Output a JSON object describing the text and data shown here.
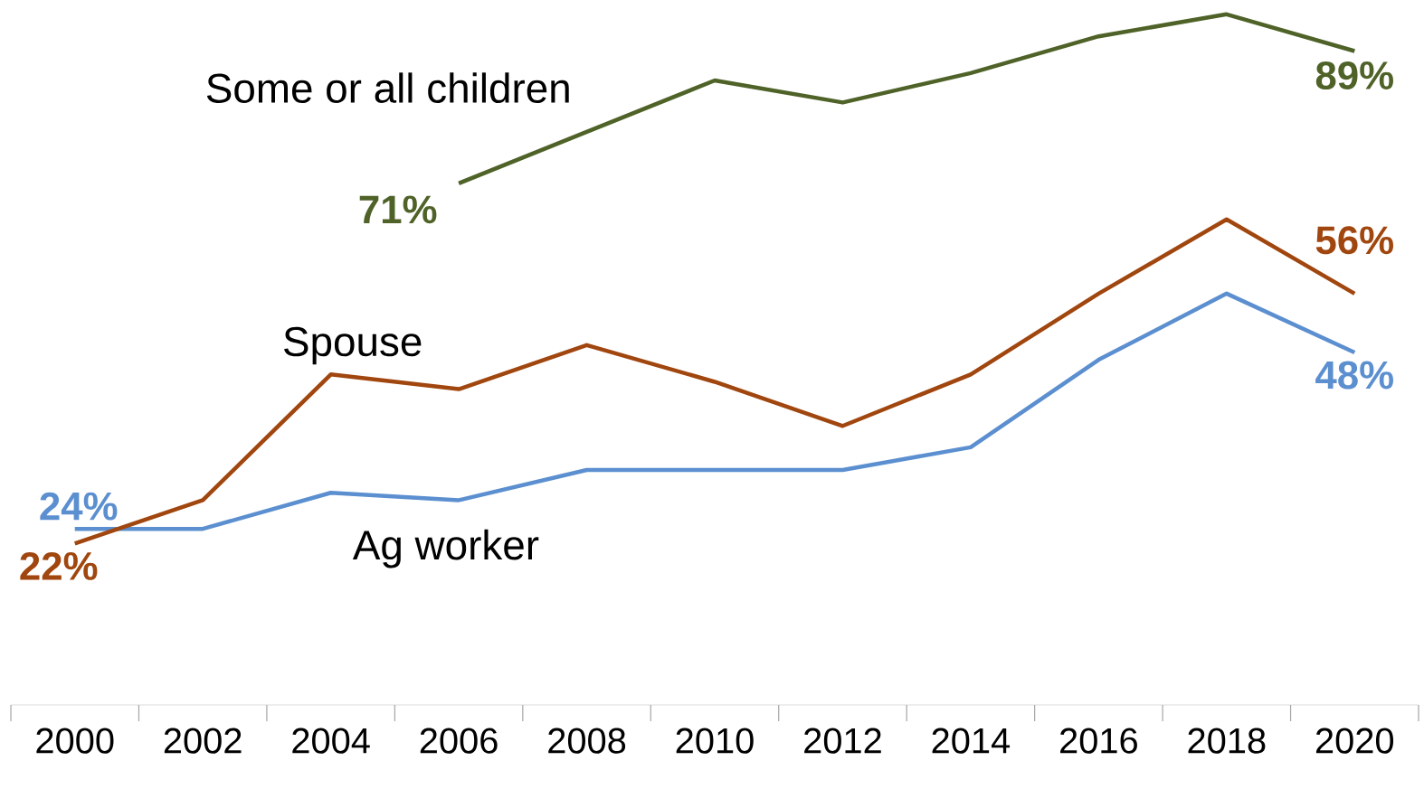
{
  "chart_data": {
    "type": "line",
    "categories": [
      "2000",
      "2002",
      "2004",
      "2006",
      "2008",
      "2010",
      "2012",
      "2014",
      "2016",
      "2018",
      "2020"
    ],
    "series": [
      {
        "name": "Ag worker",
        "color": "#5b8fd0",
        "values": [
          24,
          24,
          28.9,
          27.9,
          32,
          32,
          32,
          35.1,
          47,
          56,
          48
        ],
        "value_labels": [
          "24%",
          null,
          null,
          null,
          null,
          null,
          null,
          null,
          null,
          null,
          "48%"
        ]
      },
      {
        "name": "Spouse",
        "color": "#a0460e",
        "values": [
          22,
          27.9,
          45,
          43,
          49,
          44,
          38,
          45,
          56,
          66.1,
          56
        ],
        "value_labels": [
          "22%",
          null,
          null,
          null,
          null,
          null,
          null,
          null,
          null,
          null,
          "56%"
        ]
      },
      {
        "name": "Some or all children",
        "color": "#4f6228",
        "values": [
          null,
          null,
          null,
          71,
          78,
          85,
          82,
          86,
          91,
          94,
          89
        ],
        "value_labels": [
          null,
          null,
          null,
          "71%",
          null,
          null,
          null,
          null,
          null,
          null,
          "89%"
        ]
      }
    ]
  }
}
